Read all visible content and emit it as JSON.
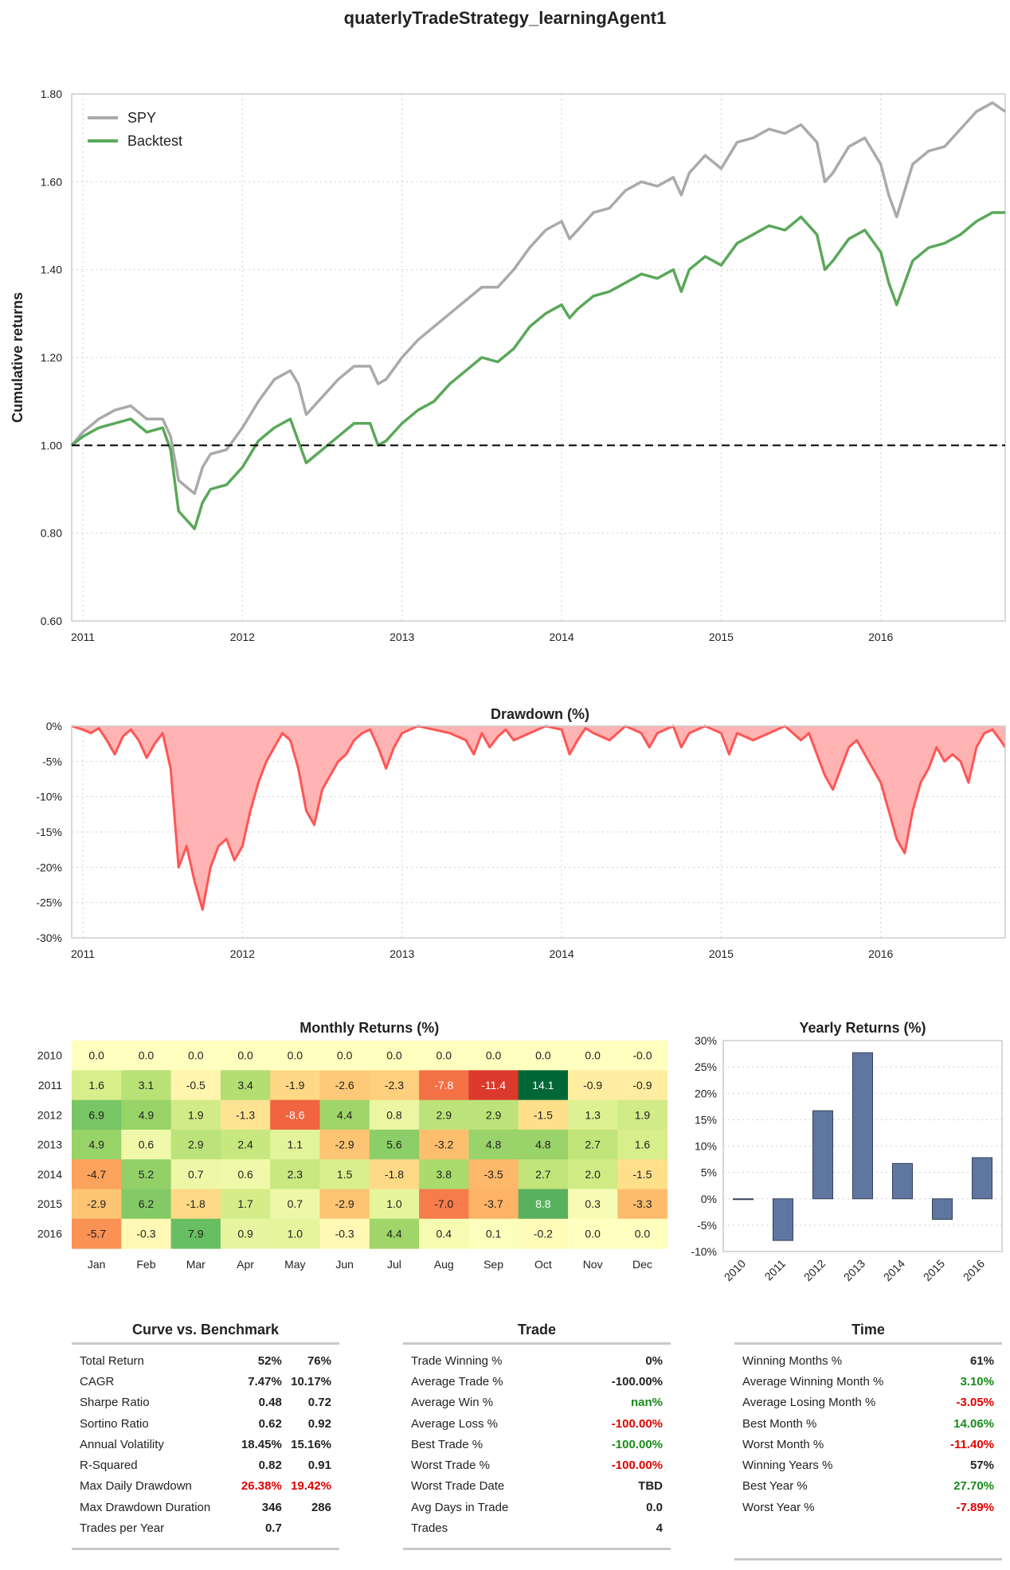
{
  "title": "quaterlyTradeStrategy_learningAgent1",
  "chart_data": [
    {
      "type": "line",
      "id": "cumulative",
      "ylabel": "Cumulative returns",
      "ylim": [
        0.6,
        1.8
      ],
      "yticks": [
        "0.60",
        "0.80",
        "1.00",
        "1.20",
        "1.40",
        "1.60",
        "1.80"
      ],
      "xticks": [
        "2011",
        "2012",
        "2013",
        "2014",
        "2015",
        "2016"
      ],
      "xrange": [
        2010.93,
        2016.78
      ],
      "grid": true,
      "legend_position": "top-left",
      "reference_line": 1.0,
      "series": [
        {
          "name": "SPY",
          "color": "#aaaaaa",
          "x": [
            2010.93,
            2011.0,
            2011.1,
            2011.2,
            2011.3,
            2011.4,
            2011.5,
            2011.55,
            2011.6,
            2011.7,
            2011.75,
            2011.8,
            2011.9,
            2012.0,
            2012.1,
            2012.2,
            2012.3,
            2012.35,
            2012.4,
            2012.5,
            2012.6,
            2012.7,
            2012.8,
            2012.85,
            2012.9,
            2013.0,
            2013.1,
            2013.2,
            2013.3,
            2013.4,
            2013.5,
            2013.6,
            2013.7,
            2013.8,
            2013.9,
            2014.0,
            2014.05,
            2014.1,
            2014.2,
            2014.3,
            2014.4,
            2014.5,
            2014.6,
            2014.7,
            2014.75,
            2014.8,
            2014.9,
            2015.0,
            2015.1,
            2015.2,
            2015.3,
            2015.4,
            2015.5,
            2015.6,
            2015.65,
            2015.7,
            2015.8,
            2015.9,
            2016.0,
            2016.05,
            2016.1,
            2016.15,
            2016.2,
            2016.3,
            2016.4,
            2016.5,
            2016.6,
            2016.7,
            2016.78
          ],
          "y": [
            1.0,
            1.03,
            1.06,
            1.08,
            1.09,
            1.06,
            1.06,
            1.02,
            0.92,
            0.89,
            0.95,
            0.98,
            0.99,
            1.04,
            1.1,
            1.15,
            1.17,
            1.14,
            1.07,
            1.11,
            1.15,
            1.18,
            1.18,
            1.14,
            1.15,
            1.2,
            1.24,
            1.27,
            1.3,
            1.33,
            1.36,
            1.36,
            1.4,
            1.45,
            1.49,
            1.51,
            1.47,
            1.49,
            1.53,
            1.54,
            1.58,
            1.6,
            1.59,
            1.61,
            1.57,
            1.62,
            1.66,
            1.63,
            1.69,
            1.7,
            1.72,
            1.71,
            1.73,
            1.69,
            1.6,
            1.62,
            1.68,
            1.7,
            1.64,
            1.57,
            1.52,
            1.58,
            1.64,
            1.67,
            1.68,
            1.72,
            1.76,
            1.78,
            1.76
          ]
        },
        {
          "name": "Backtest",
          "color": "#5aa85a",
          "x": [
            2010.93,
            2011.0,
            2011.1,
            2011.2,
            2011.3,
            2011.4,
            2011.5,
            2011.55,
            2011.6,
            2011.7,
            2011.75,
            2011.8,
            2011.9,
            2012.0,
            2012.1,
            2012.2,
            2012.3,
            2012.35,
            2012.4,
            2012.5,
            2012.6,
            2012.7,
            2012.8,
            2012.85,
            2012.9,
            2013.0,
            2013.1,
            2013.2,
            2013.3,
            2013.4,
            2013.5,
            2013.6,
            2013.7,
            2013.8,
            2013.9,
            2014.0,
            2014.05,
            2014.1,
            2014.2,
            2014.3,
            2014.4,
            2014.5,
            2014.6,
            2014.7,
            2014.75,
            2014.8,
            2014.9,
            2015.0,
            2015.1,
            2015.2,
            2015.3,
            2015.4,
            2015.5,
            2015.6,
            2015.65,
            2015.7,
            2015.8,
            2015.9,
            2016.0,
            2016.05,
            2016.1,
            2016.15,
            2016.2,
            2016.3,
            2016.4,
            2016.5,
            2016.6,
            2016.7,
            2016.78
          ],
          "y": [
            1.0,
            1.02,
            1.04,
            1.05,
            1.06,
            1.03,
            1.04,
            0.99,
            0.85,
            0.81,
            0.87,
            0.9,
            0.91,
            0.95,
            1.01,
            1.04,
            1.06,
            1.01,
            0.96,
            0.99,
            1.02,
            1.05,
            1.05,
            1.0,
            1.01,
            1.05,
            1.08,
            1.1,
            1.14,
            1.17,
            1.2,
            1.19,
            1.22,
            1.27,
            1.3,
            1.32,
            1.29,
            1.31,
            1.34,
            1.35,
            1.37,
            1.39,
            1.38,
            1.4,
            1.35,
            1.4,
            1.43,
            1.41,
            1.46,
            1.48,
            1.5,
            1.49,
            1.52,
            1.48,
            1.4,
            1.42,
            1.47,
            1.49,
            1.44,
            1.37,
            1.32,
            1.37,
            1.42,
            1.45,
            1.46,
            1.48,
            1.51,
            1.53,
            1.53
          ]
        }
      ]
    },
    {
      "type": "area",
      "id": "drawdown",
      "title": "Drawdown (%)",
      "ylim": [
        -30,
        0
      ],
      "yticks": [
        "0%",
        "-5%",
        "-10%",
        "-15%",
        "-20%",
        "-25%",
        "-30%"
      ],
      "xticks": [
        "2011",
        "2012",
        "2013",
        "2014",
        "2015",
        "2016"
      ],
      "xrange": [
        2010.93,
        2016.78
      ],
      "grid": true,
      "color": "#ff5555",
      "x": [
        2010.93,
        2011.0,
        2011.05,
        2011.1,
        2011.15,
        2011.2,
        2011.25,
        2011.3,
        2011.35,
        2011.4,
        2011.45,
        2011.5,
        2011.55,
        2011.6,
        2011.65,
        2011.7,
        2011.75,
        2011.8,
        2011.85,
        2011.9,
        2011.95,
        2012.0,
        2012.05,
        2012.1,
        2012.15,
        2012.2,
        2012.25,
        2012.3,
        2012.35,
        2012.4,
        2012.45,
        2012.5,
        2012.55,
        2012.6,
        2012.65,
        2012.7,
        2012.75,
        2012.8,
        2012.85,
        2012.9,
        2012.95,
        2013.0,
        2013.1,
        2013.2,
        2013.3,
        2013.4,
        2013.45,
        2013.5,
        2013.55,
        2013.6,
        2013.65,
        2013.7,
        2013.8,
        2013.9,
        2014.0,
        2014.05,
        2014.1,
        2014.15,
        2014.2,
        2014.3,
        2014.4,
        2014.5,
        2014.55,
        2014.6,
        2014.7,
        2014.75,
        2014.8,
        2014.9,
        2015.0,
        2015.05,
        2015.1,
        2015.2,
        2015.3,
        2015.4,
        2015.5,
        2015.55,
        2015.6,
        2015.65,
        2015.7,
        2015.75,
        2015.8,
        2015.85,
        2015.9,
        2015.95,
        2016.0,
        2016.05,
        2016.1,
        2016.15,
        2016.2,
        2016.25,
        2016.3,
        2016.35,
        2016.4,
        2016.45,
        2016.5,
        2016.55,
        2016.6,
        2016.65,
        2016.7,
        2016.75,
        2016.78
      ],
      "y": [
        0,
        -0.5,
        -1,
        -0.3,
        -2,
        -4,
        -1.5,
        -0.5,
        -2,
        -4.5,
        -2.5,
        -1,
        -6,
        -20,
        -17,
        -22,
        -26,
        -20,
        -17,
        -16,
        -19,
        -17,
        -12,
        -8,
        -5,
        -3,
        -1,
        -2,
        -6,
        -12,
        -14,
        -9,
        -7,
        -5,
        -4,
        -2,
        -1,
        -0.5,
        -3,
        -6,
        -3,
        -1,
        0,
        -0.5,
        -1,
        -2,
        -4,
        -1,
        -3,
        -1.5,
        -0.5,
        -2,
        -1,
        0,
        -0.5,
        -4,
        -2,
        -0.3,
        -1,
        -2,
        0,
        -1,
        -3,
        -1,
        0,
        -3,
        -1,
        0,
        -1,
        -4,
        -1,
        -2,
        -1,
        0,
        -2,
        -1,
        -4,
        -7,
        -9,
        -6,
        -3,
        -2,
        -4,
        -6,
        -8,
        -12,
        -16,
        -18,
        -12,
        -8,
        -6,
        -3,
        -5,
        -4,
        -5,
        -8,
        -3,
        -1,
        -0.5,
        -2,
        -3
      ]
    },
    {
      "type": "heatmap",
      "id": "monthly",
      "title": "Monthly Returns (%)",
      "rows": [
        "2010",
        "2011",
        "2012",
        "2013",
        "2014",
        "2015",
        "2016"
      ],
      "cols": [
        "Jan",
        "Feb",
        "Mar",
        "Apr",
        "May",
        "Jun",
        "Jul",
        "Aug",
        "Sep",
        "Oct",
        "Nov",
        "Dec"
      ],
      "labels": [
        [
          "0.0",
          "0.0",
          "0.0",
          "0.0",
          "0.0",
          "0.0",
          "0.0",
          "0.0",
          "0.0",
          "0.0",
          "0.0",
          "-0.0"
        ],
        [
          "1.6",
          "3.1",
          "-0.5",
          "3.4",
          "-1.9",
          "-2.6",
          "-2.3",
          "-7.8",
          "-11.4",
          "14.1",
          "-0.9",
          "-0.9"
        ],
        [
          "6.9",
          "4.9",
          "1.9",
          "-1.3",
          "-8.6",
          "4.4",
          "0.8",
          "2.9",
          "2.9",
          "-1.5",
          "1.3",
          "1.9"
        ],
        [
          "4.9",
          "0.6",
          "2.9",
          "2.4",
          "1.1",
          "-2.9",
          "5.6",
          "-3.2",
          "4.8",
          "4.8",
          "2.7",
          "1.6"
        ],
        [
          "-4.7",
          "5.2",
          "0.7",
          "0.6",
          "2.3",
          "1.5",
          "-1.8",
          "3.8",
          "-3.5",
          "2.7",
          "2.0",
          "-1.5"
        ],
        [
          "-2.9",
          "6.2",
          "-1.8",
          "1.7",
          "0.7",
          "-2.9",
          "1.0",
          "-7.0",
          "-3.7",
          "8.8",
          "0.3",
          "-3.3"
        ],
        [
          "-5.7",
          "-0.3",
          "7.9",
          "0.9",
          "1.0",
          "-0.3",
          "4.4",
          "0.4",
          "0.1",
          "-0.2",
          "0.0",
          "0.0"
        ]
      ]
    },
    {
      "type": "bar",
      "id": "yearly",
      "title": "Yearly Returns (%)",
      "categories": [
        "2010",
        "2011",
        "2012",
        "2013",
        "2014",
        "2015",
        "2016"
      ],
      "values": [
        -0.1,
        -7.9,
        16.7,
        27.7,
        6.7,
        -3.9,
        7.8
      ],
      "ylim": [
        -10,
        30
      ],
      "yticks": [
        "30%",
        "25%",
        "20%",
        "15%",
        "10%",
        "5%",
        "0%",
        "-5%",
        "-10%"
      ],
      "color": "#5f76a0"
    }
  ],
  "stats": {
    "curve": {
      "title": "Curve vs. Benchmark",
      "rows": [
        {
          "label": "Total Return",
          "v1": "52%",
          "v2": "76%",
          "c1": "",
          "c2": ""
        },
        {
          "label": "CAGR",
          "v1": "7.47%",
          "v2": "10.17%",
          "c1": "",
          "c2": ""
        },
        {
          "label": "Sharpe Ratio",
          "v1": "0.48",
          "v2": "0.72",
          "c1": "",
          "c2": ""
        },
        {
          "label": "Sortino Ratio",
          "v1": "0.62",
          "v2": "0.92",
          "c1": "",
          "c2": ""
        },
        {
          "label": "Annual Volatility",
          "v1": "18.45%",
          "v2": "15.16%",
          "c1": "",
          "c2": ""
        },
        {
          "label": "R-Squared",
          "v1": "0.82",
          "v2": "0.91",
          "c1": "",
          "c2": ""
        },
        {
          "label": "Max Daily Drawdown",
          "v1": "26.38%",
          "v2": "19.42%",
          "c1": "neg",
          "c2": "neg"
        },
        {
          "label": "Max Drawdown Duration",
          "v1": "346",
          "v2": "286",
          "c1": "",
          "c2": ""
        },
        {
          "label": "Trades per Year",
          "v1": "0.7",
          "v2": "",
          "c1": "",
          "c2": ""
        }
      ]
    },
    "trade": {
      "title": "Trade",
      "rows": [
        {
          "label": "Trade Winning %",
          "v": "0%",
          "c": ""
        },
        {
          "label": "Average Trade %",
          "v": "-100.00%",
          "c": ""
        },
        {
          "label": "Average Win %",
          "v": "nan%",
          "c": "pos"
        },
        {
          "label": "Average Loss %",
          "v": "-100.00%",
          "c": "neg"
        },
        {
          "label": "Best Trade %",
          "v": "-100.00%",
          "c": "pos"
        },
        {
          "label": "Worst Trade %",
          "v": "-100.00%",
          "c": "neg"
        },
        {
          "label": "Worst Trade Date",
          "v": "TBD",
          "c": ""
        },
        {
          "label": "Avg Days in Trade",
          "v": "0.0",
          "c": ""
        },
        {
          "label": "Trades",
          "v": "4",
          "c": ""
        }
      ]
    },
    "time": {
      "title": "Time",
      "rows": [
        {
          "label": "Winning Months %",
          "v": "61%",
          "c": ""
        },
        {
          "label": "Average Winning Month %",
          "v": "3.10%",
          "c": "pos"
        },
        {
          "label": "Average Losing Month %",
          "v": "-3.05%",
          "c": "neg"
        },
        {
          "label": "Best Month %",
          "v": "14.06%",
          "c": "pos"
        },
        {
          "label": "Worst Month %",
          "v": "-11.40%",
          "c": "neg"
        },
        {
          "label": "Winning Years %",
          "v": "57%",
          "c": ""
        },
        {
          "label": "Best Year %",
          "v": "27.70%",
          "c": "pos"
        },
        {
          "label": "Worst Year %",
          "v": "-7.89%",
          "c": "neg"
        }
      ]
    }
  }
}
